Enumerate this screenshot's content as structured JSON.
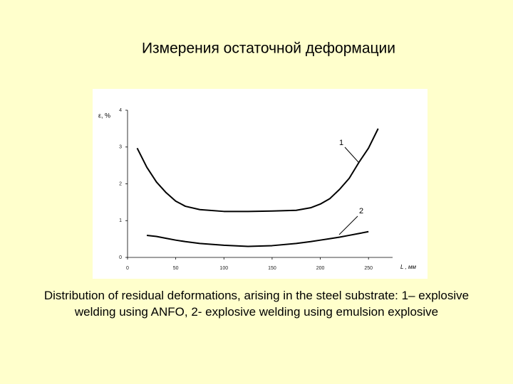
{
  "chart_data": {
    "type": "line",
    "title": "Измерения остаточной деформации",
    "y_label": "ε, %",
    "x_label": "L , мм",
    "caption": "Distribution of residual deformations, arising in the steel substrate: 1– explosive welding using ANFO, 2- explosive welding using emulsion explosive",
    "x": [
      10,
      20,
      30,
      40,
      50,
      60,
      75,
      100,
      125,
      150,
      175,
      190,
      200,
      210,
      220,
      230,
      240,
      250,
      260
    ],
    "series": [
      {
        "name": "1",
        "color": "#000000",
        "values": [
          2.97,
          2.45,
          2.05,
          1.76,
          1.53,
          1.39,
          1.3,
          1.25,
          1.25,
          1.26,
          1.28,
          1.35,
          1.45,
          1.6,
          1.85,
          2.15,
          2.58,
          2.97,
          3.5
        ]
      },
      {
        "name": "2",
        "color": "#000000",
        "values": [
          null,
          0.6,
          0.57,
          0.52,
          0.47,
          0.43,
          0.38,
          0.33,
          0.3,
          0.32,
          0.38,
          0.43,
          0.47,
          0.51,
          0.55,
          0.6,
          0.65,
          0.7,
          null
        ]
      }
    ],
    "xlim": [
      0,
      275
    ],
    "ylim": [
      0,
      4
    ],
    "xticks": [
      0,
      50,
      100,
      150,
      200,
      250
    ],
    "yticks": [
      0,
      1,
      2,
      3,
      4
    ]
  }
}
